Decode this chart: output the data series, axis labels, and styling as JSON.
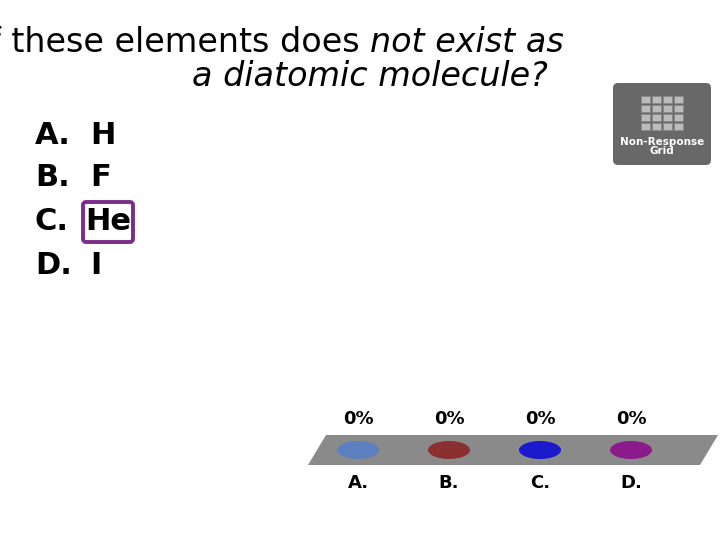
{
  "title_normal": "Which of these elements does ",
  "title_italic": "not exist as",
  "title_line2": "a diatomic molecule?",
  "options": [
    {
      "label": "A.",
      "text": "H",
      "boxed": false
    },
    {
      "label": "B.",
      "text": "F",
      "boxed": false
    },
    {
      "label": "C.",
      "text": "He",
      "boxed": true
    },
    {
      "label": "D.",
      "text": "I",
      "boxed": false
    }
  ],
  "box_color": "#7B2D8B",
  "background_color": "#ffffff",
  "bar_color": "#8a8a8a",
  "percentages": [
    "0%",
    "0%",
    "0%",
    "0%"
  ],
  "dot_colors": [
    "#5b7fbf",
    "#8B3030",
    "#1a1acc",
    "#8B1A8B"
  ],
  "dot_labels": [
    "A.",
    "B.",
    "C.",
    "D."
  ],
  "title_fontsize": 24,
  "option_fontsize": 22,
  "pct_fontsize": 13,
  "label_fontsize": 13
}
